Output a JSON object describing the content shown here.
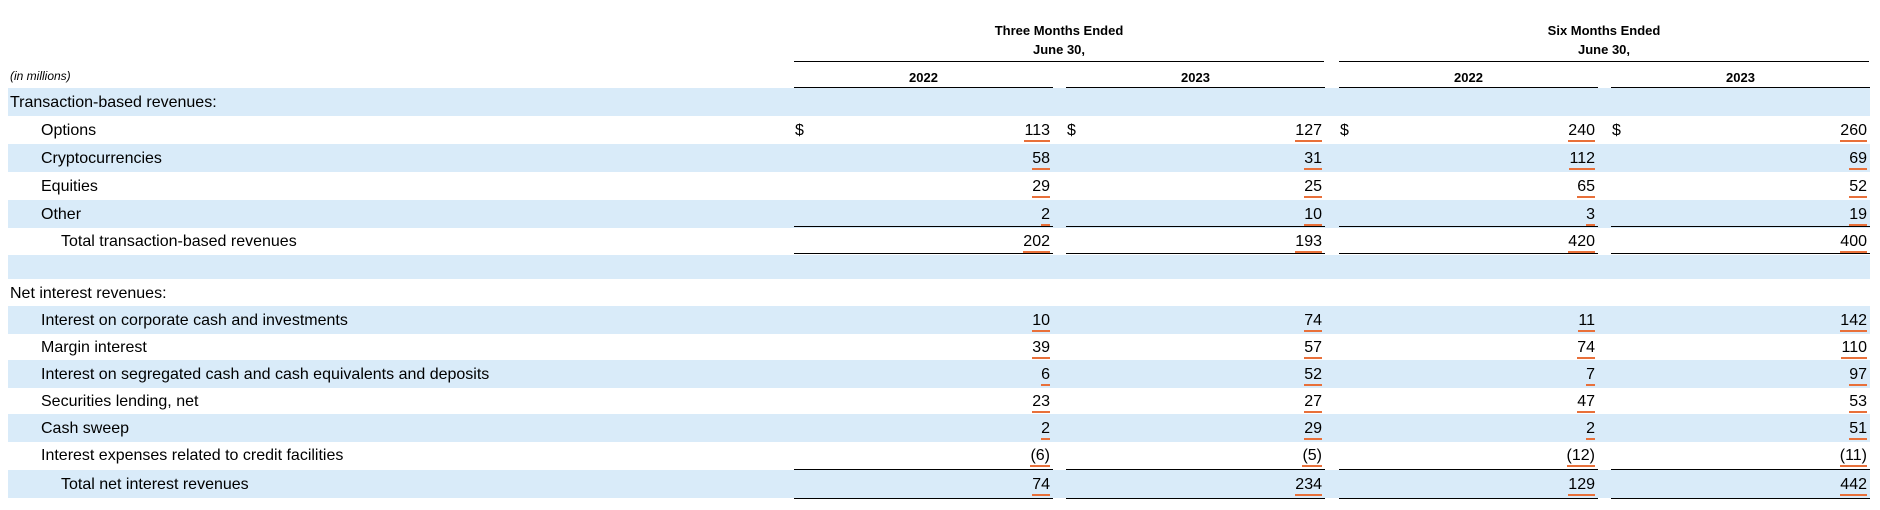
{
  "header": {
    "three_months_l1": "Three Months Ended",
    "three_months_l2": "June 30,",
    "six_months_l1": "Six Months Ended",
    "six_months_l2": "June 30,",
    "years": [
      "2022",
      "2023",
      "2022",
      "2023"
    ],
    "units": "(in millions)"
  },
  "currency_symbol": "$",
  "sections": {
    "transaction": {
      "heading": "Transaction-based revenues:",
      "rows": [
        {
          "label": "Options",
          "values": [
            "113",
            "127",
            "240",
            "260"
          ]
        },
        {
          "label": "Cryptocurrencies",
          "values": [
            "58",
            "31",
            "112",
            "69"
          ]
        },
        {
          "label": "Equities",
          "values": [
            "29",
            "25",
            "65",
            "52"
          ]
        },
        {
          "label": "Other",
          "values": [
            "2",
            "10",
            "3",
            "19"
          ]
        }
      ],
      "total": {
        "label": "Total transaction-based revenues",
        "values": [
          "202",
          "193",
          "420",
          "400"
        ]
      }
    },
    "interest": {
      "heading": "Net interest revenues:",
      "rows": [
        {
          "label": "Interest on corporate cash and investments",
          "values": [
            "10",
            "74",
            "11",
            "142"
          ]
        },
        {
          "label": "Margin interest",
          "values": [
            "39",
            "57",
            "74",
            "110"
          ]
        },
        {
          "label": "Interest on segregated cash and cash equivalents and deposits",
          "values": [
            "6",
            "52",
            "7",
            "97"
          ]
        },
        {
          "label": "Securities lending, net",
          "values": [
            "23",
            "27",
            "47",
            "53"
          ]
        },
        {
          "label": "Cash sweep",
          "values": [
            "2",
            "29",
            "2",
            "51"
          ]
        },
        {
          "label": "Interest expenses related to credit facilities",
          "values": [
            "(6)",
            "(5)",
            "(12)",
            "(11)"
          ]
        }
      ],
      "total": {
        "label": "Total net interest revenues",
        "values": [
          "74",
          "234",
          "129",
          "442"
        ]
      }
    }
  }
}
